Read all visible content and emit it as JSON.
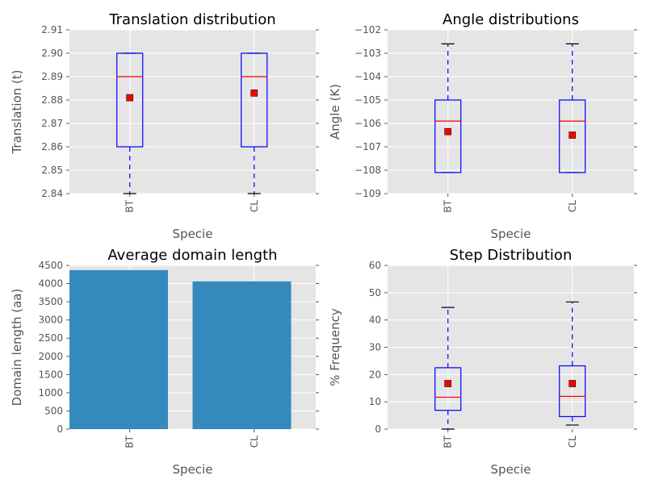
{
  "chart_data": [
    {
      "type": "box",
      "title": "Translation distribution",
      "xlabel": "Specie",
      "ylabel": "Translation (t)",
      "ylim": [
        2.84,
        2.91
      ],
      "yticks": [
        2.84,
        2.85,
        2.86,
        2.87,
        2.88,
        2.89,
        2.9,
        2.91
      ],
      "ytick_labels": [
        "2.84",
        "2.85",
        "2.86",
        "2.87",
        "2.88",
        "2.89",
        "2.90",
        "2.91"
      ],
      "categories": [
        "BT",
        "CL"
      ],
      "boxes": [
        {
          "category": "BT",
          "whislo": 2.84,
          "q1": 2.86,
          "med": 2.89,
          "q3": 2.9,
          "whishi": 2.9,
          "mean": 2.881
        },
        {
          "category": "CL",
          "whislo": 2.84,
          "q1": 2.86,
          "med": 2.89,
          "q3": 2.9,
          "whishi": 2.9,
          "mean": 2.883
        }
      ],
      "grid": true
    },
    {
      "type": "box",
      "title": "Angle distributions",
      "xlabel": "Specie",
      "ylabel": "Angle (K)",
      "ylim": [
        -109,
        -102
      ],
      "yticks": [
        -109,
        -108,
        -107,
        -106,
        -105,
        -104,
        -103,
        -102
      ],
      "ytick_labels": [
        "−109",
        "−108",
        "−107",
        "−106",
        "−105",
        "−104",
        "−103",
        "−102"
      ],
      "categories": [
        "BT",
        "CL"
      ],
      "boxes": [
        {
          "category": "BT",
          "whislo": -108.1,
          "q1": -108.1,
          "med": -105.9,
          "q3": -105.0,
          "whishi": -102.6,
          "mean": -106.35
        },
        {
          "category": "CL",
          "whislo": -108.1,
          "q1": -108.1,
          "med": -105.9,
          "q3": -105.0,
          "whishi": -102.6,
          "mean": -106.5
        }
      ],
      "grid": true
    },
    {
      "type": "bar",
      "title": "Average domain length",
      "xlabel": "Specie",
      "ylabel": "Domain length (aa)",
      "ylim": [
        0,
        4500
      ],
      "yticks": [
        0,
        500,
        1000,
        1500,
        2000,
        2500,
        3000,
        3500,
        4000,
        4500
      ],
      "ytick_labels": [
        "0",
        "500",
        "1000",
        "1500",
        "2000",
        "2500",
        "3000",
        "3500",
        "4000",
        "4500"
      ],
      "categories": [
        "BT",
        "CL"
      ],
      "values": [
        4370,
        4060
      ],
      "bar_color": "#348abd",
      "grid": true
    },
    {
      "type": "box",
      "title": "Step Distribution",
      "xlabel": "Specie",
      "ylabel": "% Frequency",
      "ylim": [
        0,
        60
      ],
      "yticks": [
        0,
        10,
        20,
        30,
        40,
        50,
        60
      ],
      "ytick_labels": [
        "0",
        "10",
        "20",
        "30",
        "40",
        "50",
        "60"
      ],
      "categories": [
        "BT",
        "CL"
      ],
      "boxes": [
        {
          "category": "BT",
          "whislo": 0,
          "q1": 6.9,
          "med": 11.7,
          "q3": 22.5,
          "whishi": 44.6,
          "mean": 16.7
        },
        {
          "category": "CL",
          "whislo": 1.5,
          "q1": 4.6,
          "med": 12.0,
          "q3": 23.2,
          "whishi": 46.6,
          "mean": 16.7
        }
      ],
      "grid": true
    }
  ],
  "colors": {
    "box": "#0000ff",
    "median": "#ff0000",
    "mean_marker": "#ff0000",
    "caps": "#000000",
    "background": "#e5e5e5",
    "bar": "#348abd"
  }
}
